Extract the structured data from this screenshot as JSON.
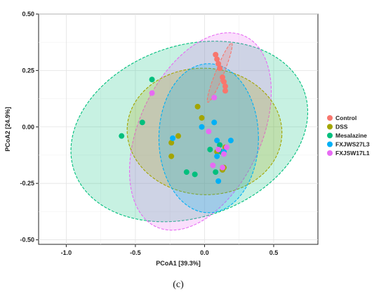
{
  "chart_data": {
    "type": "scatter",
    "xlabel": "PCoA1 [39.3%]",
    "ylabel": "PCoA2 [24.9%]",
    "xlim": [
      -1.2,
      0.82
    ],
    "ylim": [
      -0.52,
      0.5
    ],
    "xticks": [
      -1.0,
      -0.5,
      0.0,
      0.5
    ],
    "xtick_labels": [
      "-1.0",
      "-0.5",
      "0.0",
      "0.5"
    ],
    "yticks": [
      -0.5,
      -0.25,
      0.0,
      0.25,
      0.5
    ],
    "ytick_labels": [
      "-0.50",
      "-0.25",
      "0.00",
      "0.25",
      "0.50"
    ],
    "grid": true,
    "legend_position": "right",
    "caption": "(c)",
    "series": [
      {
        "name": "Control",
        "color": "#f8766d",
        "points": [
          [
            0.08,
            0.32
          ],
          [
            0.09,
            0.3
          ],
          [
            0.1,
            0.28
          ],
          [
            0.11,
            0.26
          ],
          [
            0.13,
            0.22
          ],
          [
            0.14,
            0.2
          ],
          [
            0.15,
            0.18
          ],
          [
            0.15,
            0.16
          ]
        ],
        "ellipse": {
          "cx": 0.11,
          "cy": 0.24,
          "rx": 0.23,
          "ry": 0.018,
          "angle": -68
        }
      },
      {
        "name": "DSS",
        "color": "#a3a500",
        "points": [
          [
            -0.05,
            0.09
          ],
          [
            -0.02,
            0.04
          ],
          [
            -0.24,
            -0.07
          ],
          [
            -0.19,
            -0.04
          ],
          [
            -0.24,
            -0.13
          ],
          [
            0.09,
            -0.11
          ],
          [
            0.15,
            -0.09
          ],
          [
            0.14,
            -0.18
          ],
          [
            0.13,
            -0.19
          ]
        ],
        "ellipse": {
          "cx": 0.0,
          "cy": -0.02,
          "rx": 0.56,
          "ry": 0.28,
          "angle": 3
        }
      },
      {
        "name": "Mesalazine",
        "color": "#00bf7d",
        "points": [
          [
            -0.6,
            -0.04
          ],
          [
            -0.45,
            0.02
          ],
          [
            -0.38,
            0.21
          ],
          [
            -0.13,
            -0.2
          ],
          [
            -0.07,
            -0.21
          ],
          [
            0.08,
            -0.2
          ],
          [
            0.11,
            -0.08
          ],
          [
            0.12,
            -0.11
          ],
          [
            0.04,
            -0.1
          ]
        ],
        "ellipse": {
          "cx": -0.11,
          "cy": -0.02,
          "rx": 0.88,
          "ry": 0.38,
          "angle": -19
        }
      },
      {
        "name": "FXJWS27L3",
        "color": "#00b0f6",
        "points": [
          [
            -0.23,
            -0.05
          ],
          [
            -0.02,
            0.0
          ],
          [
            0.07,
            0.02
          ],
          [
            0.09,
            -0.06
          ],
          [
            0.14,
            -0.11
          ],
          [
            0.19,
            -0.06
          ],
          [
            0.09,
            -0.13
          ],
          [
            0.1,
            -0.24
          ]
        ],
        "ellipse": {
          "cx": 0.03,
          "cy": -0.05,
          "rx": 0.36,
          "ry": 0.33,
          "angle": 0
        }
      },
      {
        "name": "FXJSW17L1",
        "color": "#e76bf3",
        "points": [
          [
            -0.38,
            0.15
          ],
          [
            0.07,
            0.13
          ],
          [
            0.03,
            -0.02
          ],
          [
            0.1,
            -0.1
          ],
          [
            0.14,
            -0.12
          ],
          [
            0.16,
            -0.09
          ],
          [
            0.06,
            -0.17
          ],
          [
            0.13,
            -0.18
          ]
        ],
        "ellipse": {
          "cx": -0.03,
          "cy": -0.02,
          "rx": 0.76,
          "ry": 0.27,
          "angle": -65
        }
      }
    ]
  }
}
